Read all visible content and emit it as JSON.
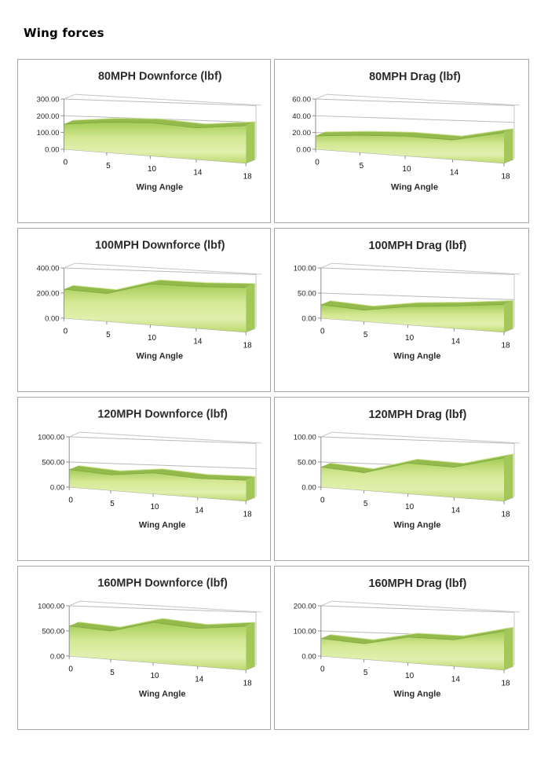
{
  "header": {
    "title": "Wing forces"
  },
  "style": {
    "panel_border": "#a6a6a6",
    "grid_stroke": "#b9b9b9",
    "axis_stroke": "#8e8e8e",
    "floor_stroke": "#a8a8a8",
    "wall_stroke": "#c4c4c4",
    "text_color": "#262626",
    "title_color": "#2b2b2b",
    "area_gradient": [
      "#a3cb55",
      "#d4e894",
      "#e1f0ae",
      "#bcd96e"
    ],
    "band_fill": "#94ba4c",
    "band_highlight": "#cde394",
    "side_fill": "#a4c759",
    "side_highlight": "#e2f1bd",
    "profile_stroke": "#7da73d"
  },
  "chart_data": [
    {
      "type": "area",
      "title": "80MPH Downforce (lbf)",
      "xlabel": "Wing Angle",
      "x_ticks": [
        "0",
        "5",
        "10",
        "14",
        "18"
      ],
      "x": [
        0,
        5,
        10,
        14,
        18
      ],
      "values": [
        150,
        175,
        185,
        170,
        195
      ],
      "ylim": [
        0,
        300
      ],
      "y_ticks": [
        "0.00",
        "100.00",
        "200.00",
        "300.00"
      ],
      "grid": true,
      "legend": false
    },
    {
      "type": "area",
      "title": "80MPH Drag (lbf)",
      "xlabel": "Wing Angle",
      "x_ticks": [
        "0",
        "5",
        "10",
        "14",
        "18"
      ],
      "x": [
        0,
        5,
        10,
        14,
        18
      ],
      "values": [
        16,
        20,
        22,
        21,
        32
      ],
      "ylim": [
        0,
        60
      ],
      "y_ticks": [
        "0.00",
        "20.00",
        "40.00",
        "60.00"
      ],
      "grid": true,
      "legend": false
    },
    {
      "type": "area",
      "title": "100MPH Downforce (lbf)",
      "xlabel": "Wing Angle",
      "x_ticks": [
        "0",
        "5",
        "10",
        "14",
        "18"
      ],
      "x": [
        0,
        5,
        10,
        14,
        18
      ],
      "values": [
        230,
        215,
        305,
        300,
        310
      ],
      "ylim": [
        0,
        400
      ],
      "y_ticks": [
        "0.00",
        "200.00",
        "400.00"
      ],
      "grid": true,
      "legend": false
    },
    {
      "type": "area",
      "title": "100MPH Drag (lbf)",
      "xlabel": "Wing Angle",
      "x_ticks": [
        "0",
        "5",
        "10",
        "14",
        "18"
      ],
      "x": [
        0,
        5,
        10,
        14,
        18
      ],
      "values": [
        27,
        22,
        34,
        40,
        48
      ],
      "ylim": [
        0,
        100
      ],
      "y_ticks": [
        "0.00",
        "50.00",
        "100.00"
      ],
      "grid": true,
      "legend": false
    },
    {
      "type": "area",
      "title": "120MPH Downforce (lbf)",
      "xlabel": "Wing Angle",
      "x_ticks": [
        "0",
        "5",
        "10",
        "14",
        "18"
      ],
      "x": [
        0,
        5,
        10,
        14,
        18
      ],
      "values": [
        350,
        300,
        390,
        340,
        360
      ],
      "ylim": [
        0,
        1000
      ],
      "y_ticks": [
        "0.00",
        "500.00",
        "1000.00"
      ],
      "grid": true,
      "legend": false
    },
    {
      "type": "area",
      "title": "120MPH Drag (lbf)",
      "xlabel": "Wing Angle",
      "x_ticks": [
        "0",
        "5",
        "10",
        "14",
        "18"
      ],
      "x": [
        0,
        5,
        10,
        14,
        18
      ],
      "values": [
        40,
        34,
        57,
        54,
        75
      ],
      "ylim": [
        0,
        100
      ],
      "y_ticks": [
        "0.00",
        "50.00",
        "100.00"
      ],
      "grid": true,
      "legend": false
    },
    {
      "type": "area",
      "title": "160MPH Downforce (lbf)",
      "xlabel": "Wing Angle",
      "x_ticks": [
        "0",
        "5",
        "10",
        "14",
        "18"
      ],
      "x": [
        0,
        5,
        10,
        14,
        18
      ],
      "values": [
        600,
        545,
        750,
        680,
        760
      ],
      "ylim": [
        0,
        1000
      ],
      "y_ticks": [
        "0.00",
        "500.00",
        "1000.00"
      ],
      "grid": true,
      "legend": false
    },
    {
      "type": "area",
      "title": "160MPH Drag (lbf)",
      "xlabel": "Wing Angle",
      "x_ticks": [
        "0",
        "5",
        "10",
        "14",
        "18"
      ],
      "x": [
        0,
        5,
        10,
        14,
        18
      ],
      "values": [
        70,
        60,
        95,
        95,
        135
      ],
      "ylim": [
        0,
        200
      ],
      "y_ticks": [
        "0.00",
        "100.00",
        "200.00"
      ],
      "grid": true,
      "legend": false
    }
  ]
}
